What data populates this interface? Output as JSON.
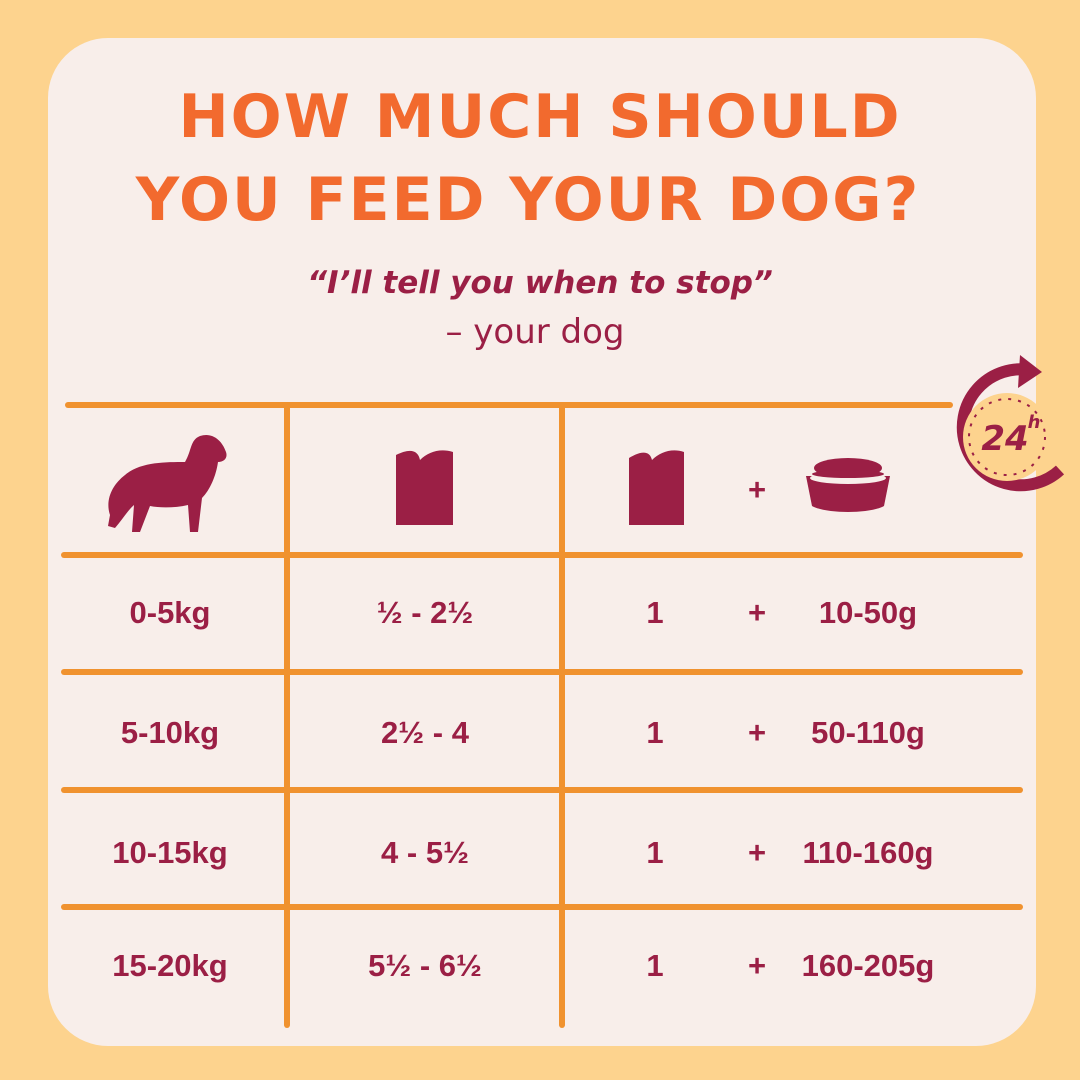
{
  "header": {
    "title_lines": [
      "HOW MUCH SHOULD",
      "YOU FEED YOUR DOG?"
    ],
    "quote": "“I’ll tell you when to stop”",
    "attribution": "– your dog"
  },
  "badge": {
    "number": "24",
    "unit": "h"
  },
  "table": {
    "header_plus": "+",
    "rows": [
      [
        "0-5kg",
        "½  - 2½",
        "1",
        "+",
        "10-50g"
      ],
      [
        "5-10kg",
        "2½ - 4",
        "1",
        "+",
        "50-110g"
      ],
      [
        "10-15kg",
        "4 - 5½",
        "1",
        "+",
        "110-160g"
      ],
      [
        "15-20kg",
        "5½ - 6½",
        "1",
        "+",
        "160-205g"
      ]
    ]
  }
}
